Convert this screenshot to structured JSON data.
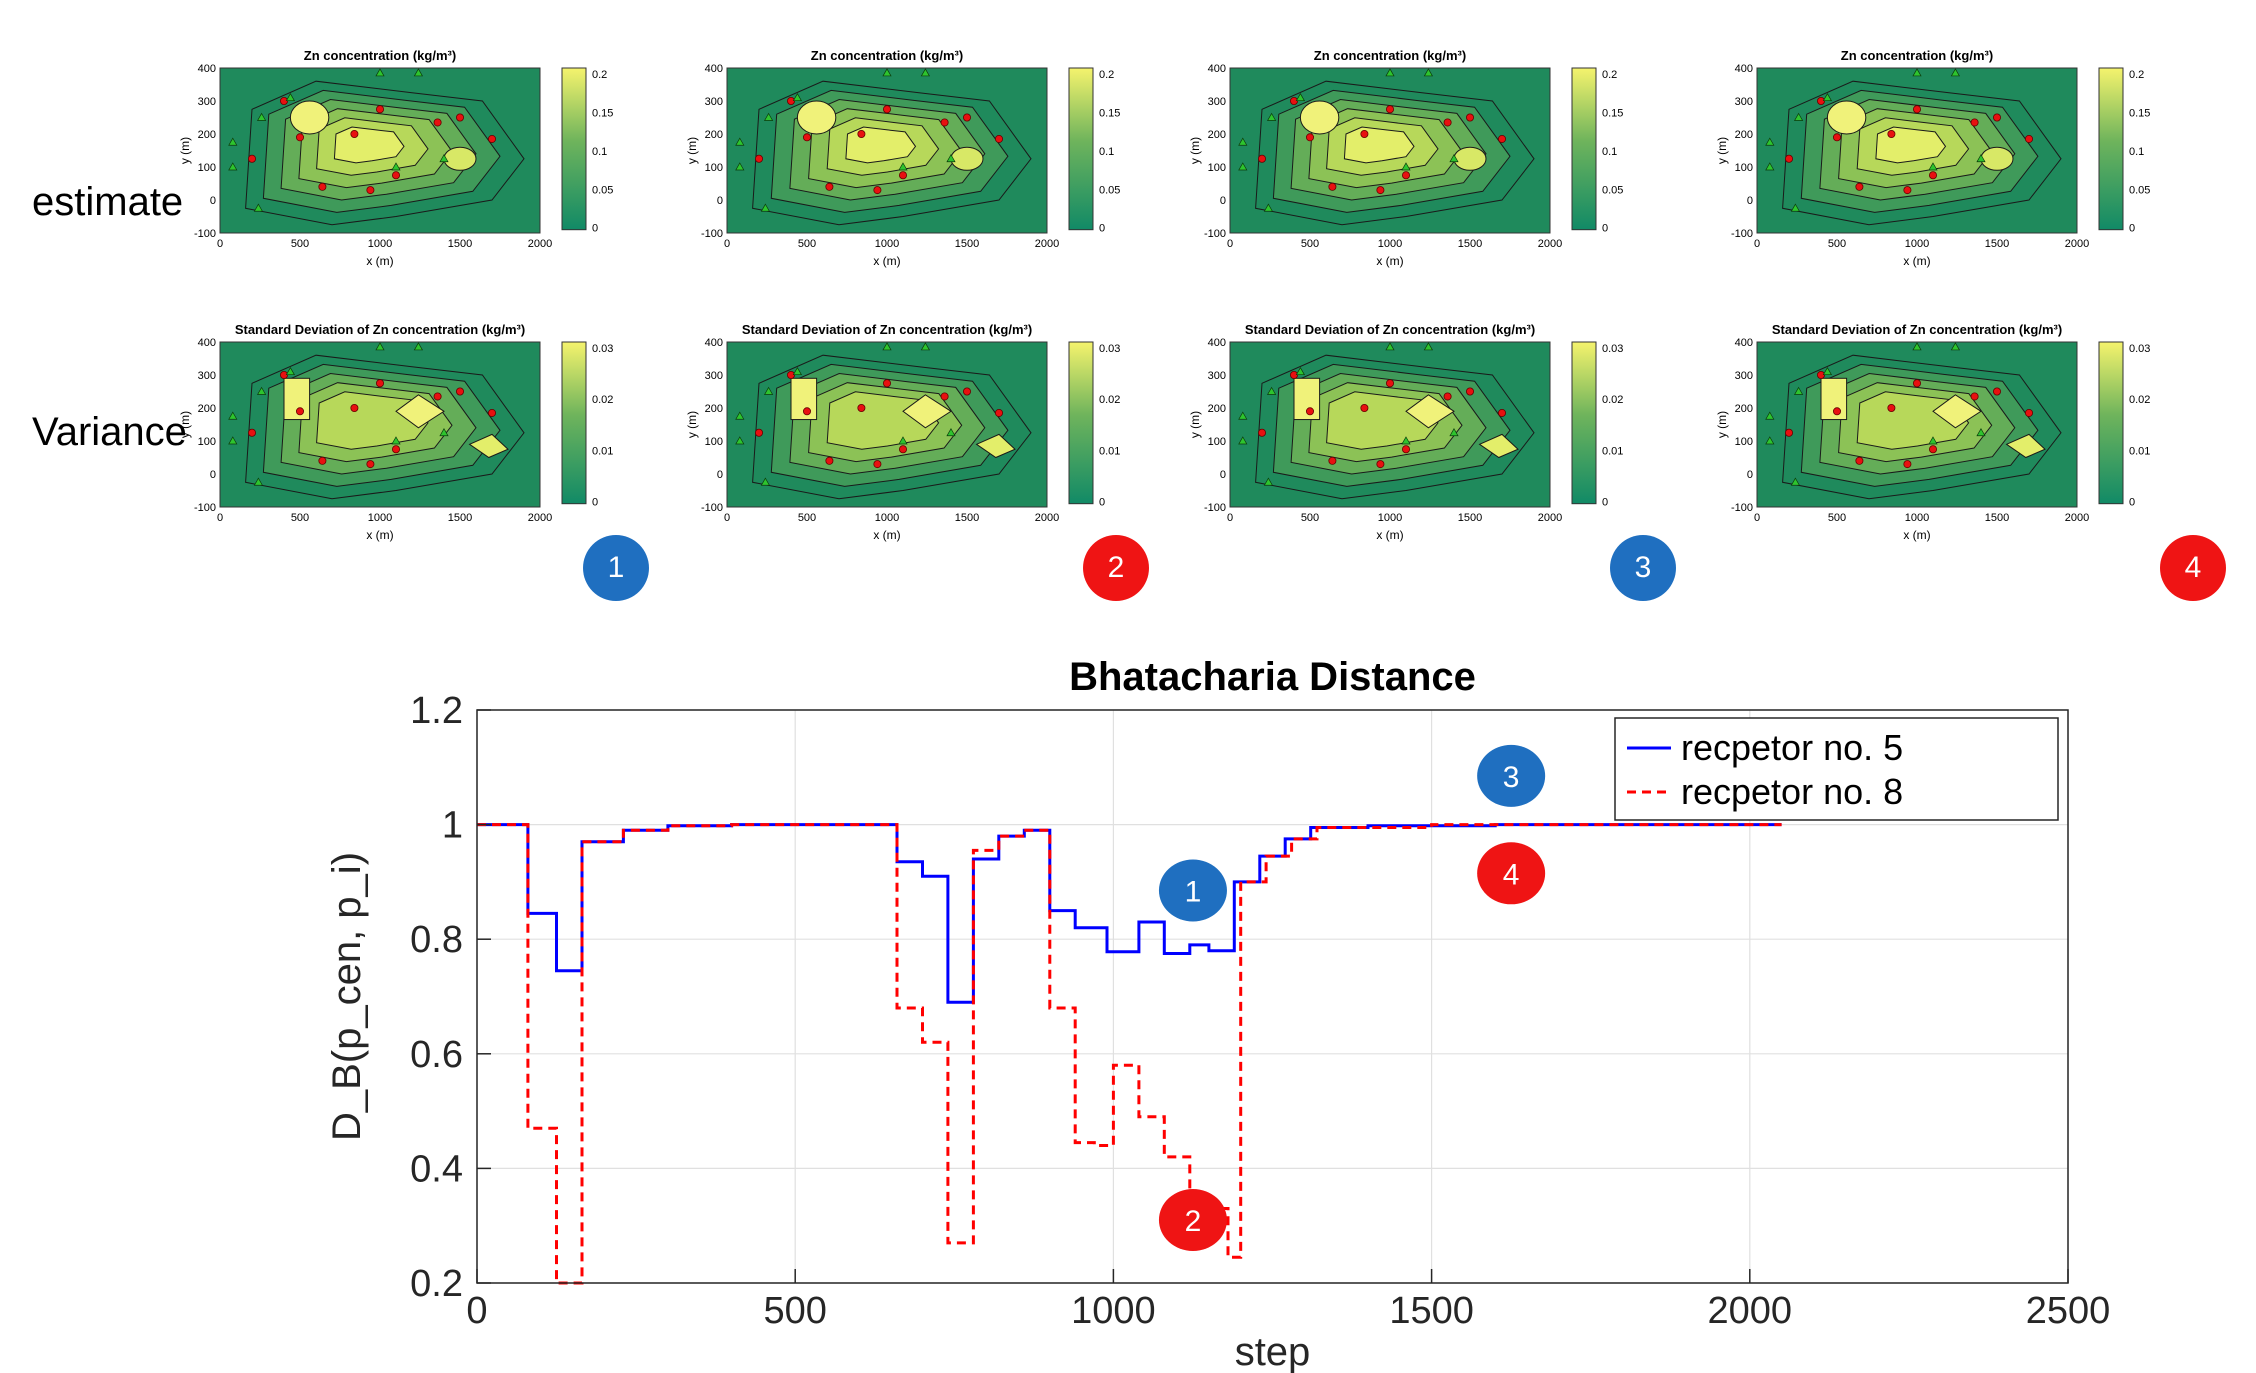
{
  "row_labels": {
    "estimate": "estimate",
    "variance": "Variance"
  },
  "panels": [
    {
      "marker": "1",
      "marker_color": "#1f6fc0",
      "top_title": "Zn concentration (kg/m³)",
      "top_cbar_ticks": [
        "0.2",
        "0.15",
        "0.1",
        "0.05",
        "0"
      ],
      "bottom_title": "Standard Deviation  of Zn concentration (kg/m³)",
      "bottom_cbar_ticks": [
        "0.03",
        "0.02",
        "0.01",
        "0"
      ]
    },
    {
      "marker": "2",
      "marker_color": "#ef1414",
      "top_title": "Zn concentration (kg/m³)",
      "top_cbar_ticks": [
        "0.2",
        "0.15",
        "0.1",
        "0.05",
        "0"
      ],
      "bottom_title": "Standard Deviation  of Zn concentration (kg/m³)",
      "bottom_cbar_ticks": [
        "0.03",
        "0.02",
        "0.01",
        "0"
      ]
    },
    {
      "marker": "3",
      "marker_color": "#1f6fc0",
      "top_title": "Zn concentration (kg/m³)",
      "top_cbar_ticks": [
        "0.2",
        "0.15",
        "0.1",
        "0.05",
        "0"
      ],
      "bottom_title": "Standard Deviation  of Zn concentration (kg/m³)",
      "bottom_cbar_ticks": [
        "0.03",
        "0.02",
        "0.01",
        "0"
      ]
    },
    {
      "marker": "4",
      "marker_color": "#ef1414",
      "top_title": "Zn concentration (kg/m³)",
      "top_cbar_ticks": [
        "0.2",
        "0.15",
        "0.1",
        "0.05",
        "0"
      ],
      "bottom_title": "Standard Deviation  of Zn concentration (kg/m³)",
      "bottom_cbar_ticks": [
        "0.03",
        "0.02",
        "0.01",
        "0"
      ]
    }
  ],
  "small_axes": {
    "xlabel": "x (m)",
    "ylabel": "y (m)",
    "xticks": [
      "0",
      "500",
      "1000",
      "1500",
      "2000"
    ],
    "yticks": [
      "400",
      "300",
      "200",
      "100",
      "0",
      "-100"
    ]
  },
  "chart_data": {
    "type": "line",
    "title": "Bhatacharia Distance",
    "xlabel": "step",
    "ylabel": "D_B(p_cen, p_i)",
    "xlim": [
      0,
      2500
    ],
    "ylim": [
      0.2,
      1.2
    ],
    "xticks": [
      0,
      500,
      1000,
      1500,
      2000,
      2500
    ],
    "yticks": [
      0.2,
      0.4,
      0.6,
      0.8,
      1,
      1.2
    ],
    "grid": true,
    "legend_position": "top-right",
    "series": [
      {
        "name": "recpetor no. 5",
        "color": "#0000ff",
        "style": "solid",
        "x": [
          0,
          80,
          80,
          125,
          125,
          165,
          165,
          230,
          230,
          300,
          300,
          400,
          400,
          660,
          660,
          700,
          700,
          740,
          740,
          780,
          780,
          820,
          820,
          860,
          860,
          900,
          900,
          940,
          940,
          990,
          990,
          1040,
          1040,
          1080,
          1080,
          1120,
          1120,
          1150,
          1150,
          1190,
          1190,
          1230,
          1230,
          1270,
          1270,
          1310,
          1310,
          1400,
          1400,
          1600,
          1600,
          2050
        ],
        "y": [
          1.0,
          1.0,
          0.845,
          0.845,
          0.745,
          0.745,
          0.97,
          0.97,
          0.99,
          0.99,
          0.998,
          0.998,
          1.0,
          1.0,
          0.935,
          0.935,
          0.91,
          0.91,
          0.69,
          0.69,
          0.94,
          0.94,
          0.98,
          0.98,
          0.99,
          0.99,
          0.85,
          0.85,
          0.82,
          0.82,
          0.778,
          0.778,
          0.83,
          0.83,
          0.775,
          0.775,
          0.79,
          0.79,
          0.78,
          0.78,
          0.9,
          0.9,
          0.945,
          0.945,
          0.975,
          0.975,
          0.995,
          0.995,
          0.998,
          0.998,
          1.0,
          1.0
        ]
      },
      {
        "name": "recpetor no. 8",
        "color": "#ff0000",
        "style": "dashed",
        "x": [
          0,
          80,
          80,
          125,
          125,
          165,
          165,
          230,
          230,
          300,
          300,
          400,
          400,
          660,
          660,
          700,
          700,
          740,
          740,
          780,
          780,
          820,
          820,
          860,
          860,
          900,
          900,
          940,
          940,
          970,
          970,
          1000,
          1000,
          1040,
          1040,
          1080,
          1080,
          1120,
          1120,
          1150,
          1150,
          1180,
          1180,
          1200,
          1200,
          1240,
          1240,
          1280,
          1280,
          1320,
          1320,
          1500,
          1500,
          2050
        ],
        "y": [
          1.0,
          1.0,
          0.47,
          0.47,
          0.2,
          0.2,
          0.97,
          0.97,
          0.99,
          0.99,
          0.998,
          0.998,
          1.0,
          1.0,
          0.68,
          0.68,
          0.62,
          0.62,
          0.27,
          0.27,
          0.955,
          0.955,
          0.98,
          0.98,
          0.99,
          0.99,
          0.68,
          0.68,
          0.445,
          0.445,
          0.44,
          0.44,
          0.58,
          0.58,
          0.49,
          0.49,
          0.42,
          0.42,
          0.35,
          0.35,
          0.33,
          0.33,
          0.245,
          0.245,
          0.9,
          0.9,
          0.945,
          0.945,
          0.975,
          0.975,
          0.995,
          0.995,
          1.0,
          1.0
        ]
      }
    ],
    "annotations": [
      {
        "text": "1",
        "x": 1125,
        "y": 0.885,
        "color": "#1f6fc0"
      },
      {
        "text": "2",
        "x": 1125,
        "y": 0.31,
        "color": "#ef1414"
      },
      {
        "text": "3",
        "x": 1625,
        "y": 1.085,
        "color": "#1f6fc0"
      },
      {
        "text": "4",
        "x": 1625,
        "y": 0.915,
        "color": "#ef1414"
      }
    ]
  }
}
